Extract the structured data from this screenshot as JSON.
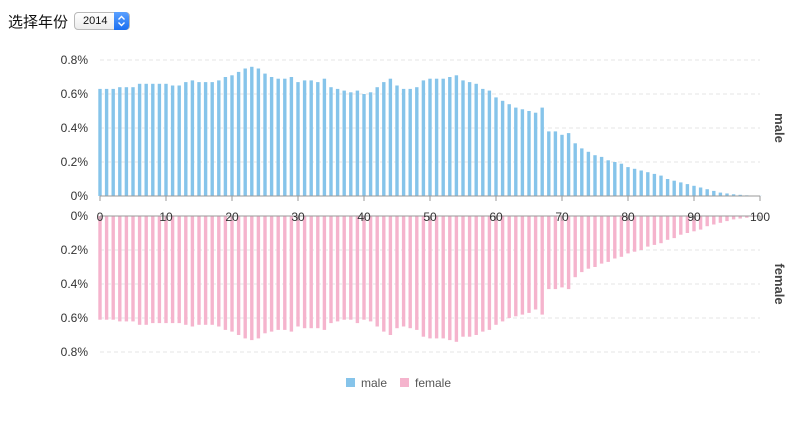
{
  "controls": {
    "year_label": "选择年份",
    "year_value": "2014"
  },
  "colors": {
    "male": "#86c4ea",
    "female": "#f5b4cd",
    "axis": "#9a9a9a",
    "grid": "#e6e6e6"
  },
  "chart_data": {
    "type": "bar",
    "layout": "population-pyramid (mirrored vertical)",
    "x": [
      0,
      1,
      2,
      3,
      4,
      5,
      6,
      7,
      8,
      9,
      10,
      11,
      12,
      13,
      14,
      15,
      16,
      17,
      18,
      19,
      20,
      21,
      22,
      23,
      24,
      25,
      26,
      27,
      28,
      29,
      30,
      31,
      32,
      33,
      34,
      35,
      36,
      37,
      38,
      39,
      40,
      41,
      42,
      43,
      44,
      45,
      46,
      47,
      48,
      49,
      50,
      51,
      52,
      53,
      54,
      55,
      56,
      57,
      58,
      59,
      60,
      61,
      62,
      63,
      64,
      65,
      66,
      67,
      68,
      69,
      70,
      71,
      72,
      73,
      74,
      75,
      76,
      77,
      78,
      79,
      80,
      81,
      82,
      83,
      84,
      85,
      86,
      87,
      88,
      89,
      90,
      91,
      92,
      93,
      94,
      95,
      96,
      97,
      98,
      99,
      100
    ],
    "x_ticks": [
      "0",
      "10",
      "20",
      "30",
      "40",
      "50",
      "60",
      "70",
      "80",
      "90",
      "100"
    ],
    "y_ticks": [
      "0%",
      "0.2%",
      "0.4%",
      "0.6%",
      "0.8%"
    ],
    "ylim": [
      0,
      0.8
    ],
    "unit": "%",
    "series": [
      {
        "name": "male",
        "values": [
          0.63,
          0.63,
          0.63,
          0.64,
          0.64,
          0.64,
          0.66,
          0.66,
          0.66,
          0.66,
          0.66,
          0.65,
          0.65,
          0.67,
          0.68,
          0.67,
          0.67,
          0.67,
          0.68,
          0.7,
          0.71,
          0.73,
          0.75,
          0.76,
          0.75,
          0.72,
          0.7,
          0.69,
          0.69,
          0.7,
          0.67,
          0.68,
          0.68,
          0.67,
          0.69,
          0.64,
          0.63,
          0.62,
          0.61,
          0.62,
          0.6,
          0.61,
          0.64,
          0.67,
          0.69,
          0.65,
          0.63,
          0.63,
          0.64,
          0.68,
          0.69,
          0.69,
          0.69,
          0.7,
          0.71,
          0.68,
          0.67,
          0.66,
          0.63,
          0.62,
          0.58,
          0.56,
          0.54,
          0.52,
          0.51,
          0.5,
          0.49,
          0.52,
          0.38,
          0.38,
          0.36,
          0.37,
          0.31,
          0.28,
          0.26,
          0.24,
          0.23,
          0.21,
          0.2,
          0.19,
          0.17,
          0.16,
          0.15,
          0.14,
          0.13,
          0.12,
          0.1,
          0.09,
          0.08,
          0.07,
          0.06,
          0.05,
          0.04,
          0.03,
          0.02,
          0.015,
          0.01,
          0.007,
          0.004,
          0.002,
          0.001
        ]
      },
      {
        "name": "female",
        "values": [
          0.61,
          0.61,
          0.61,
          0.62,
          0.62,
          0.62,
          0.64,
          0.64,
          0.63,
          0.63,
          0.63,
          0.63,
          0.63,
          0.64,
          0.65,
          0.64,
          0.64,
          0.64,
          0.65,
          0.67,
          0.68,
          0.7,
          0.72,
          0.73,
          0.72,
          0.69,
          0.68,
          0.67,
          0.67,
          0.68,
          0.65,
          0.66,
          0.66,
          0.66,
          0.67,
          0.63,
          0.62,
          0.61,
          0.61,
          0.63,
          0.61,
          0.62,
          0.65,
          0.68,
          0.7,
          0.66,
          0.65,
          0.66,
          0.67,
          0.71,
          0.72,
          0.72,
          0.72,
          0.73,
          0.74,
          0.71,
          0.71,
          0.7,
          0.68,
          0.67,
          0.64,
          0.62,
          0.6,
          0.59,
          0.58,
          0.57,
          0.55,
          0.58,
          0.43,
          0.43,
          0.42,
          0.43,
          0.36,
          0.33,
          0.31,
          0.3,
          0.28,
          0.27,
          0.25,
          0.24,
          0.22,
          0.21,
          0.2,
          0.18,
          0.17,
          0.16,
          0.14,
          0.13,
          0.11,
          0.1,
          0.09,
          0.08,
          0.06,
          0.05,
          0.04,
          0.03,
          0.02,
          0.015,
          0.01,
          0.005,
          0.002
        ]
      }
    ],
    "side_labels": {
      "top": "male",
      "bottom": "female"
    },
    "legend": {
      "position": "bottom-center",
      "items": [
        "male",
        "female"
      ]
    },
    "grid": true
  }
}
